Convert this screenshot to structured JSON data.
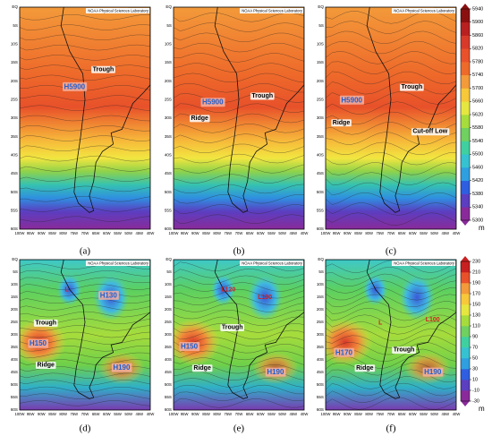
{
  "header_text": "NOAA Physical Sciences Laboratory",
  "lat_labels": [
    "EQ",
    "5S",
    "10S",
    "15S",
    "20S",
    "25S",
    "30S",
    "35S",
    "40S",
    "45S",
    "50S",
    "55S",
    "60S"
  ],
  "lon_labels": [
    "100W",
    "95W",
    "90W",
    "85W",
    "80W",
    "75W",
    "70W",
    "65W",
    "60W",
    "55W",
    "50W",
    "45W",
    "40W"
  ],
  "colorbars": [
    {
      "ticks": [
        5300,
        5340,
        5380,
        5420,
        5460,
        5500,
        5540,
        5580,
        5620,
        5660,
        5700,
        5740,
        5780,
        5820,
        5860,
        5900,
        5940
      ],
      "unit": "m"
    },
    {
      "ticks": [
        -30,
        -10,
        10,
        30,
        50,
        70,
        90,
        110,
        130,
        150,
        170,
        190,
        210,
        230
      ],
      "unit": "m"
    }
  ],
  "panels": [
    {
      "label": "(a)",
      "annotations": [
        "H5900",
        "Trough"
      ]
    },
    {
      "label": "(b)",
      "annotations": [
        "H5900",
        "Trough",
        "Ridge"
      ]
    },
    {
      "label": "(c)",
      "annotations": [
        "H5900",
        "Trough",
        "Ridge",
        "Cut-off Low"
      ]
    },
    {
      "label": "(d)",
      "annotations": [
        "L",
        "H130",
        "Trough",
        "H150",
        "Ridge",
        "H190"
      ]
    },
    {
      "label": "(e)",
      "annotations": [
        "L120",
        "L100",
        "Trough",
        "H150",
        "Ridge",
        "H190"
      ]
    },
    {
      "label": "(f)",
      "annotations": [
        "L",
        "L100",
        "Trough",
        "H170",
        "Ridge",
        "H190"
      ]
    }
  ]
}
